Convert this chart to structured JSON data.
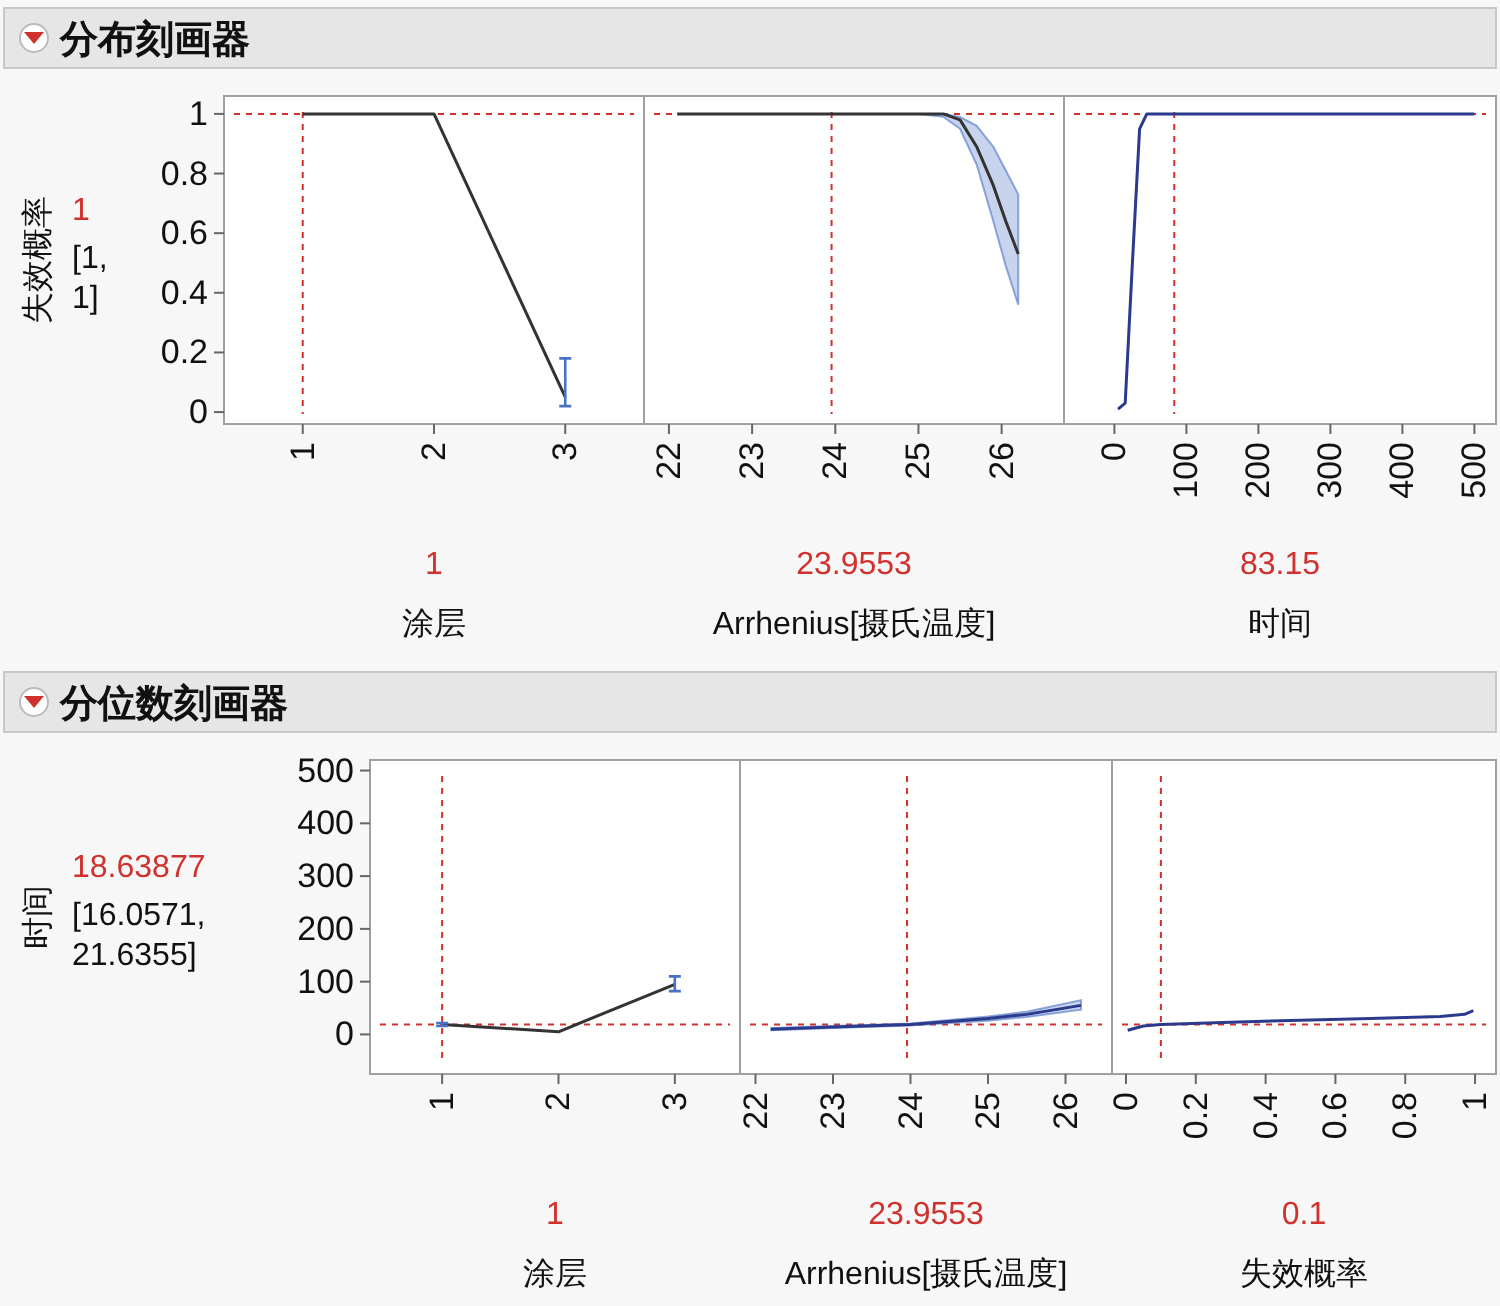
{
  "chart_data": [
    {
      "type": "line",
      "title": "分布刻画器",
      "ylabel": "失效概率",
      "xlabel": "涂层",
      "x": [
        1,
        2,
        3
      ],
      "xlim": [
        0.4,
        3.6
      ],
      "xticks": [
        1,
        2,
        3
      ],
      "ylim": [
        -0.04,
        1.06
      ],
      "yticks": [
        0,
        0.2,
        0.4,
        0.6,
        0.8,
        1
      ],
      "series": [
        {
          "color": "#333333",
          "values": [
            1,
            1,
            0.05
          ],
          "errors": [
            null,
            null,
            [
              0.02,
              0.18
            ]
          ]
        }
      ],
      "ref_lines": [
        {
          "axis": "x",
          "value": 1,
          "label": "1",
          "color": "#d0312d",
          "line_style": "dashed"
        },
        {
          "axis": "y",
          "value": 1,
          "label": "1",
          "color": "#d0312d",
          "line_style": "dashed"
        }
      ],
      "annotations": [
        "[1, 1]"
      ]
    },
    {
      "type": "line",
      "xlabel": "Arrhenius[摄氏温度]",
      "x": [
        22.1,
        23,
        24,
        25,
        25.3,
        25.5,
        25.7,
        25.9,
        26.05,
        26.2
      ],
      "xlim": [
        21.7,
        26.75
      ],
      "xticks": [
        22,
        23,
        24,
        25,
        26
      ],
      "ylim": [
        -0.04,
        1.06
      ],
      "tick_labels": "x",
      "series": [
        {
          "color": "#333333",
          "values": [
            1,
            1,
            1,
            1,
            1,
            0.98,
            0.89,
            0.76,
            0.64,
            0.53
          ],
          "lower": [
            1,
            1,
            1,
            1,
            0.99,
            0.95,
            0.83,
            0.64,
            0.49,
            0.36
          ],
          "upper": [
            1,
            1,
            1,
            1,
            1,
            0.99,
            0.96,
            0.89,
            0.81,
            0.73
          ]
        }
      ],
      "ref_lines": [
        {
          "axis": "x",
          "value": 23.9553,
          "label": "23.9553",
          "color": "#d0312d",
          "line_style": "dashed"
        },
        {
          "axis": "y",
          "value": 1,
          "color": "#d0312d",
          "line_style": "dashed"
        }
      ]
    },
    {
      "type": "line",
      "xlabel": "时间",
      "x": [
        5,
        15,
        25,
        35,
        45,
        60,
        500
      ],
      "xlim": [
        -70,
        530
      ],
      "xticks": [
        0,
        100,
        200,
        300,
        400,
        500
      ],
      "ylim": [
        -0.04,
        1.06
      ],
      "tick_labels": "x",
      "series": [
        {
          "color": "#2b3a8c",
          "values": [
            0.01,
            0.03,
            0.5,
            0.95,
            1,
            1,
            1
          ]
        }
      ],
      "ref_lines": [
        {
          "axis": "x",
          "value": 83.15,
          "label": "83.15",
          "color": "#d0312d",
          "line_style": "dashed"
        },
        {
          "axis": "y",
          "value": 1,
          "color": "#d0312d",
          "line_style": "dashed"
        }
      ]
    },
    {
      "type": "line",
      "title": "分位数刻画器",
      "ylabel": "时间",
      "xlabel": "涂层",
      "x": [
        1,
        2,
        3
      ],
      "xlim": [
        0.38,
        3.56
      ],
      "xticks": [
        1,
        2,
        3
      ],
      "ylim": [
        -75,
        520
      ],
      "yticks": [
        0,
        100,
        200,
        300,
        400,
        500
      ],
      "series": [
        {
          "color": "#333333",
          "values": [
            19,
            5,
            95
          ],
          "errors": [
            [
              16.06,
              21.64
            ],
            null,
            [
              82,
              110
            ]
          ]
        }
      ],
      "ref_lines": [
        {
          "axis": "x",
          "value": 1,
          "label": "1",
          "color": "#d0312d",
          "line_style": "dashed"
        },
        {
          "axis": "y",
          "value": 18.63877,
          "label": "18.63877",
          "color": "#d0312d",
          "line_style": "dashed"
        }
      ],
      "annotations": [
        "[16.0571, 21.6355]"
      ]
    },
    {
      "type": "line",
      "xlabel": "Arrhenius[摄氏温度]",
      "x": [
        22.2,
        23,
        24,
        25,
        25.5,
        26.2
      ],
      "xlim": [
        21.8,
        26.6
      ],
      "xticks": [
        22,
        23,
        24,
        25,
        26
      ],
      "ylim": [
        -75,
        520
      ],
      "tick_labels": "x",
      "series": [
        {
          "color": "#2b3a8c",
          "values": [
            10,
            14,
            19,
            30,
            38,
            55
          ],
          "lower": [
            8,
            12,
            17,
            26,
            33,
            47
          ],
          "upper": [
            12,
            16,
            20.5,
            34,
            43,
            65
          ]
        }
      ],
      "ref_lines": [
        {
          "axis": "x",
          "value": 23.9553,
          "label": "23.9553",
          "color": "#d0312d",
          "line_style": "dashed"
        },
        {
          "axis": "y",
          "value": 18.63877,
          "color": "#d0312d",
          "line_style": "dashed"
        }
      ]
    },
    {
      "type": "line",
      "xlabel": "失效概率",
      "x": [
        0.005,
        0.05,
        0.1,
        0.3,
        0.5,
        0.7,
        0.9,
        0.97,
        0.995
      ],
      "xlim": [
        -0.04,
        1.06
      ],
      "xticks": [
        0,
        0.2,
        0.4,
        0.6,
        0.8,
        1
      ],
      "ylim": [
        -75,
        520
      ],
      "tick_labels": "x",
      "series": [
        {
          "color": "#2b3a8c",
          "values": [
            8,
            16,
            19,
            23,
            27,
            30,
            34,
            38,
            45
          ]
        }
      ],
      "ref_lines": [
        {
          "axis": "x",
          "value": 0.1,
          "label": "0.1",
          "color": "#d0312d",
          "line_style": "dashed"
        },
        {
          "axis": "y",
          "value": 18.63877,
          "color": "#d0312d",
          "line_style": "dashed"
        }
      ]
    }
  ]
}
